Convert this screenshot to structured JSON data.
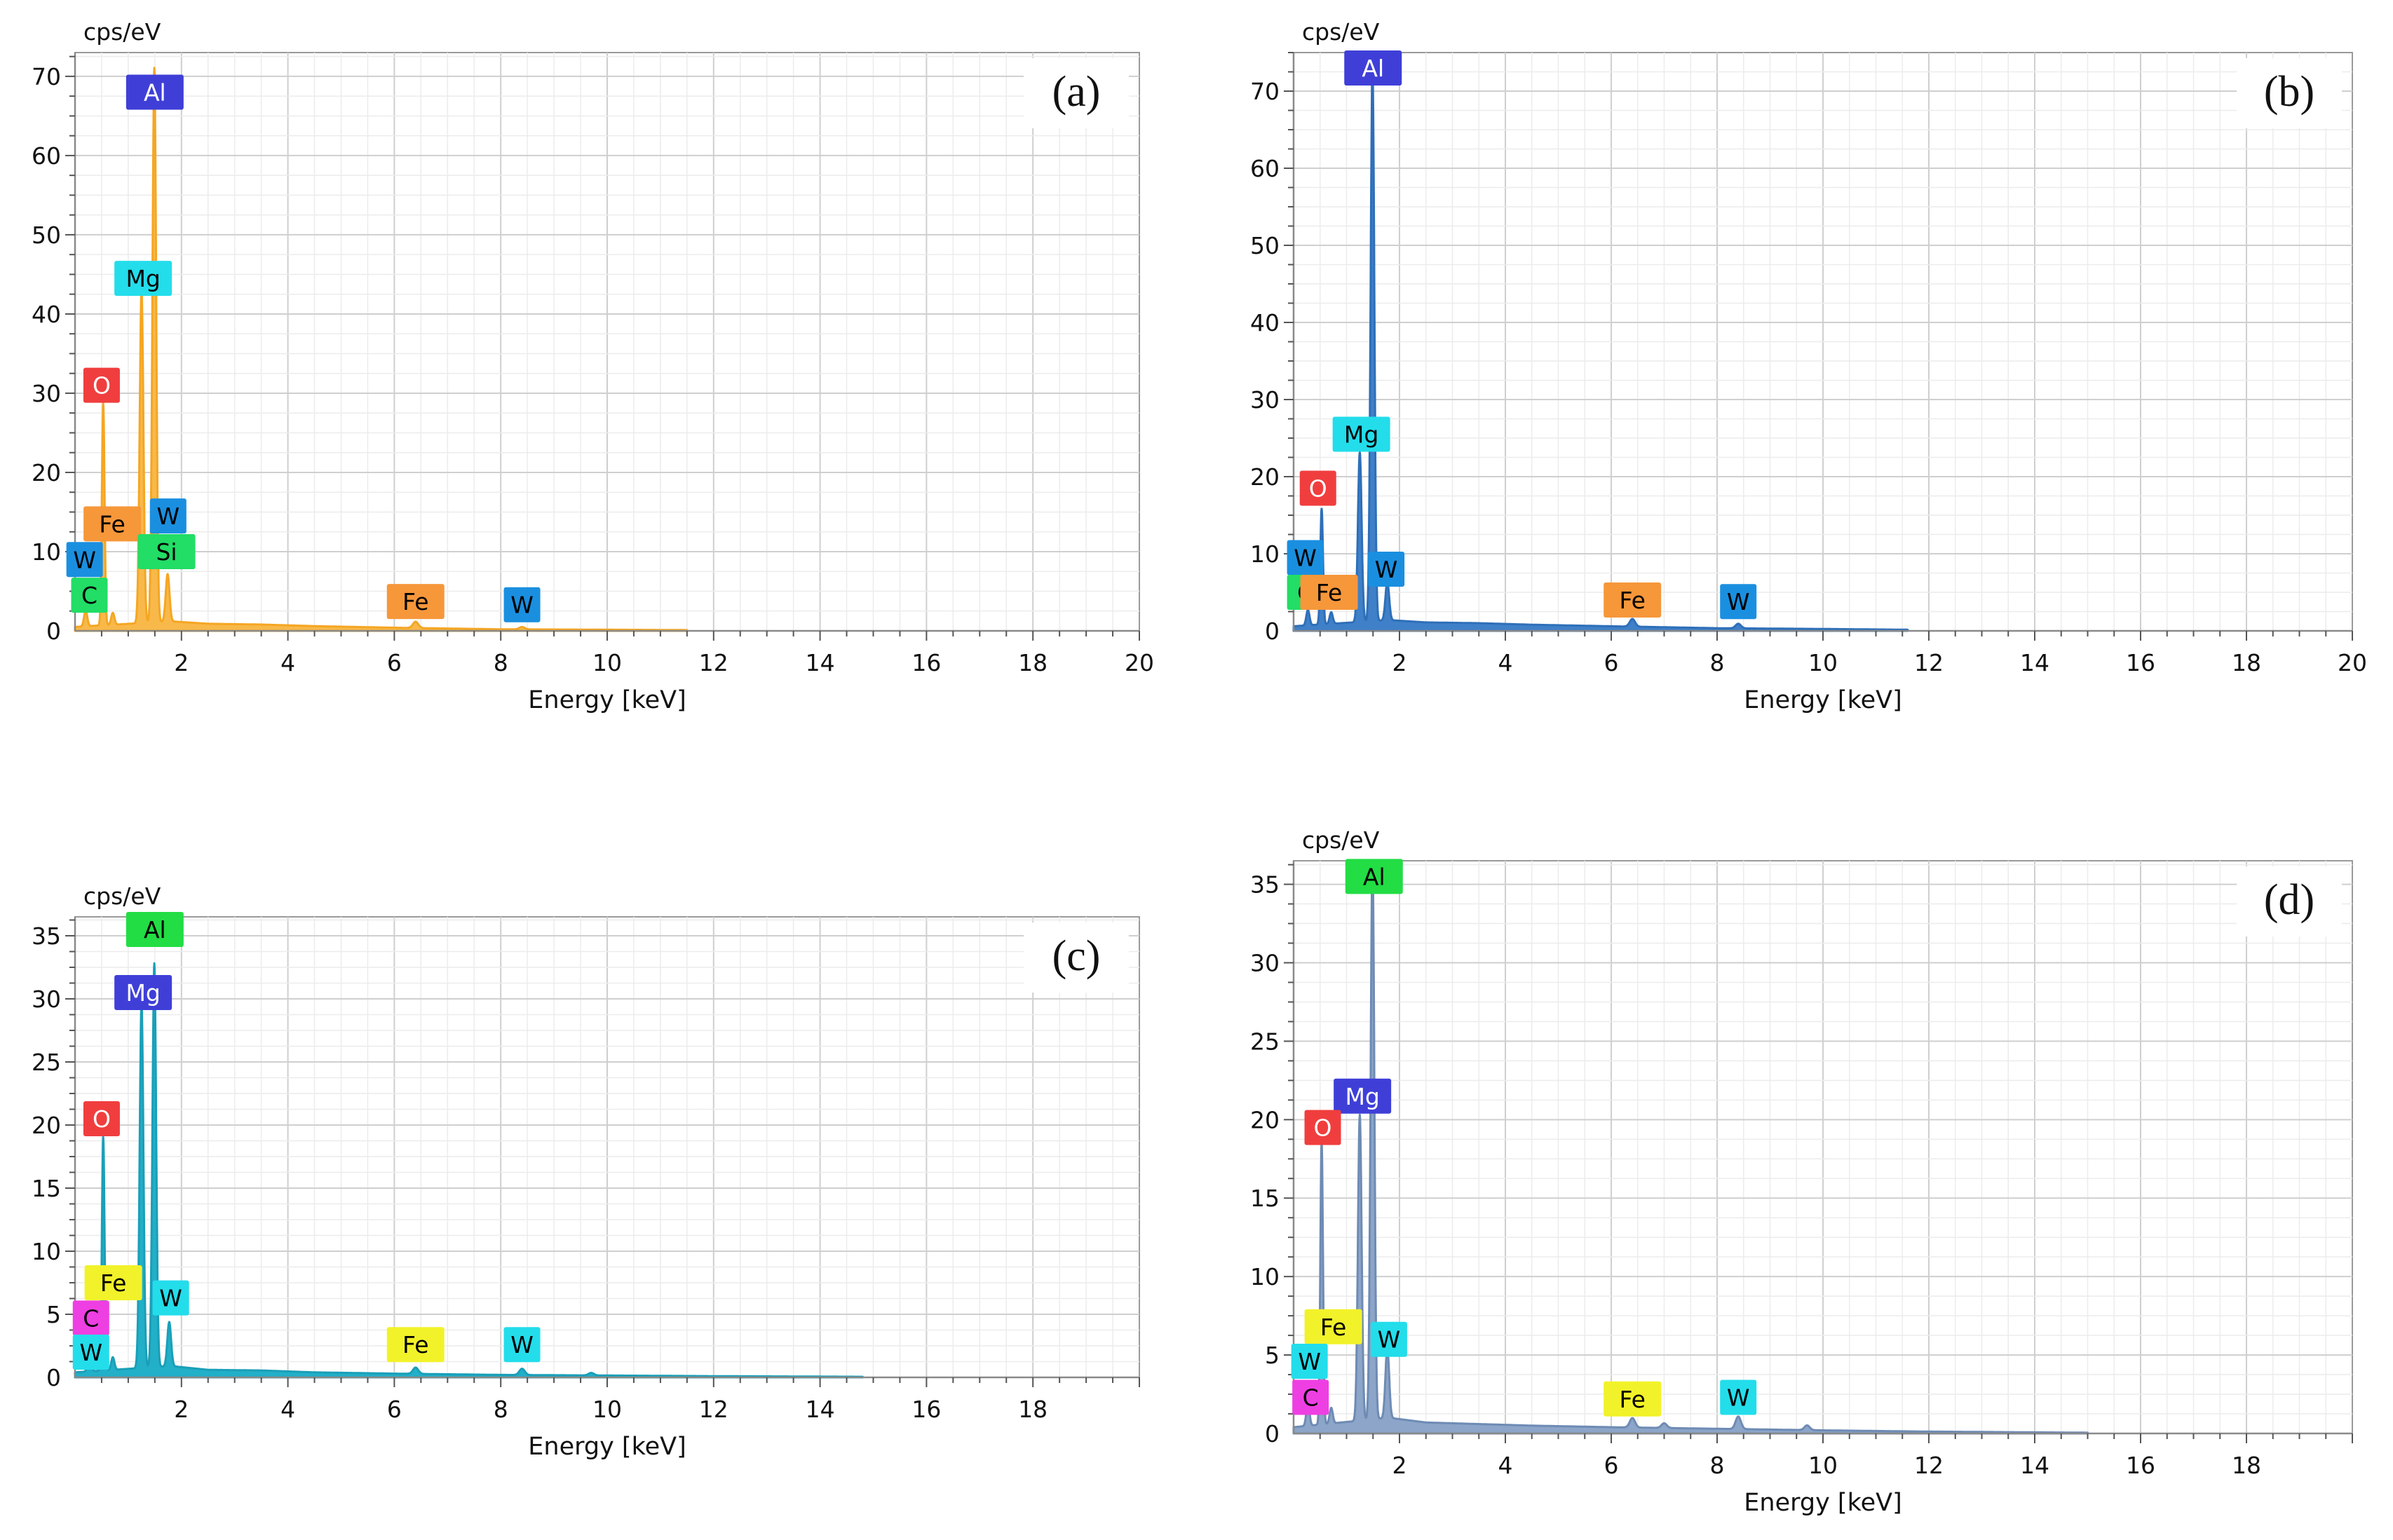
{
  "figure": {
    "panels": [
      "a",
      "b",
      "c",
      "d"
    ]
  },
  "chart_data": [
    {
      "type": "line",
      "panel": "a",
      "panel_label": "(a)",
      "title": "",
      "xlabel": "Energy [keV]",
      "ylabel": "cps/eV",
      "xlim": [
        0,
        20
      ],
      "ylim": [
        0,
        73
      ],
      "xticks": [
        2,
        4,
        6,
        8,
        10,
        12,
        14,
        16,
        18,
        20
      ],
      "yticks": [
        0,
        10,
        20,
        30,
        40,
        50,
        60,
        70
      ],
      "grid": true,
      "series_color": "#F5A623",
      "fill_color": "#F8B94A",
      "spectrum_end": 11.5,
      "background": [
        [
          0,
          0.5
        ],
        [
          1.8,
          1.2
        ],
        [
          2.5,
          0.9
        ],
        [
          3.5,
          0.8
        ],
        [
          4.5,
          0.6
        ],
        [
          6,
          0.4
        ],
        [
          8,
          0.2
        ],
        [
          10,
          0.15
        ],
        [
          11.5,
          0.1
        ]
      ],
      "peaks": [
        {
          "e": 0.2,
          "h": 2,
          "w": 0.03
        },
        {
          "e": 0.53,
          "h": 28,
          "w": 0.025
        },
        {
          "e": 0.71,
          "h": 1.5,
          "w": 0.03
        },
        {
          "e": 1.25,
          "h": 42,
          "w": 0.035
        },
        {
          "e": 1.49,
          "h": 70,
          "w": 0.035
        },
        {
          "e": 1.74,
          "h": 6,
          "w": 0.035
        },
        {
          "e": 6.4,
          "h": 0.8,
          "w": 0.05
        },
        {
          "e": 8.4,
          "h": 0.3,
          "w": 0.05
        }
      ],
      "labels": [
        {
          "text": "Al",
          "e": 1.5,
          "y": 68,
          "bg": "#3F3FD8",
          "fg": "#ffffff"
        },
        {
          "text": "Mg",
          "e": 1.28,
          "y": 44.5,
          "bg": "#23DDEB",
          "fg": "#000000"
        },
        {
          "text": "O",
          "e": 0.5,
          "y": 31,
          "bg": "#F03E3E",
          "fg": "#ffffff"
        },
        {
          "text": "Fe",
          "e": 0.7,
          "y": 13.5,
          "bg": "#F6973A",
          "fg": "#000000"
        },
        {
          "text": "W",
          "e": 1.75,
          "y": 14.5,
          "bg": "#1A8FE0",
          "fg": "#000000"
        },
        {
          "text": "Si",
          "e": 1.72,
          "y": 10,
          "bg": "#22DD66",
          "fg": "#000000"
        },
        {
          "text": "W",
          "e": 0.18,
          "y": 9,
          "bg": "#1A8FE0",
          "fg": "#000000"
        },
        {
          "text": "C",
          "e": 0.27,
          "y": 4.5,
          "bg": "#22DD66",
          "fg": "#000000"
        },
        {
          "text": "Fe",
          "e": 6.4,
          "y": 3.7,
          "bg": "#F6973A",
          "fg": "#000000"
        },
        {
          "text": "W",
          "e": 8.4,
          "y": 3.3,
          "bg": "#1A8FE0",
          "fg": "#000000"
        }
      ]
    },
    {
      "type": "line",
      "panel": "b",
      "panel_label": "(b)",
      "title": "",
      "xlabel": "Energy [keV]",
      "ylabel": "cps/eV",
      "xlim": [
        0,
        20
      ],
      "ylim": [
        0,
        75
      ],
      "xticks": [
        2,
        4,
        6,
        8,
        10,
        12,
        14,
        16,
        18,
        20
      ],
      "yticks": [
        0,
        10,
        20,
        30,
        40,
        50,
        60,
        70
      ],
      "grid": true,
      "series_color": "#2E6FB8",
      "fill_color": "#3F80C8",
      "spectrum_end": 11.6,
      "background": [
        [
          0,
          0.6
        ],
        [
          1.8,
          1.4
        ],
        [
          2.5,
          1.1
        ],
        [
          3.5,
          1.0
        ],
        [
          4.5,
          0.8
        ],
        [
          6,
          0.6
        ],
        [
          8,
          0.35
        ],
        [
          10,
          0.25
        ],
        [
          11.6,
          0.15
        ]
      ],
      "peaks": [
        {
          "e": 0.27,
          "h": 2,
          "w": 0.03
        },
        {
          "e": 0.53,
          "h": 15,
          "w": 0.025
        },
        {
          "e": 0.71,
          "h": 1.5,
          "w": 0.03
        },
        {
          "e": 1.25,
          "h": 22,
          "w": 0.035
        },
        {
          "e": 1.49,
          "h": 72,
          "w": 0.035
        },
        {
          "e": 1.77,
          "h": 5,
          "w": 0.035
        },
        {
          "e": 6.4,
          "h": 1.0,
          "w": 0.05
        },
        {
          "e": 8.4,
          "h": 0.6,
          "w": 0.05
        }
      ],
      "labels": [
        {
          "text": "Al",
          "e": 1.5,
          "y": 73,
          "bg": "#3F3FD8",
          "fg": "#ffffff"
        },
        {
          "text": "Mg",
          "e": 1.28,
          "y": 25.5,
          "bg": "#23DDEB",
          "fg": "#000000"
        },
        {
          "text": "O",
          "e": 0.46,
          "y": 18.5,
          "bg": "#F03E3E",
          "fg": "#ffffff"
        },
        {
          "text": "W",
          "e": 0.22,
          "y": 9.5,
          "bg": "#1A8FE0",
          "fg": "#000000"
        },
        {
          "text": "C",
          "e": 0.22,
          "y": 5,
          "bg": "#22DD66",
          "fg": "#000000"
        },
        {
          "text": "Fe",
          "e": 0.67,
          "y": 5,
          "bg": "#F6973A",
          "fg": "#000000"
        },
        {
          "text": "W",
          "e": 1.75,
          "y": 8,
          "bg": "#1A8FE0",
          "fg": "#000000"
        },
        {
          "text": "Fe",
          "e": 6.4,
          "y": 4,
          "bg": "#F6973A",
          "fg": "#000000"
        },
        {
          "text": "W",
          "e": 8.4,
          "y": 3.8,
          "bg": "#1A8FE0",
          "fg": "#000000"
        }
      ]
    },
    {
      "type": "line",
      "panel": "c",
      "panel_label": "(c)",
      "title": "",
      "xlabel": "Energy [keV]",
      "ylabel": "cps/eV",
      "xlim": [
        0,
        20
      ],
      "ylim": [
        0,
        36.5
      ],
      "xticks": [
        2,
        4,
        6,
        8,
        10,
        12,
        14,
        16,
        18
      ],
      "yticks": [
        0,
        5,
        10,
        15,
        20,
        25,
        30,
        35
      ],
      "grid": true,
      "series_color": "#1A9FB8",
      "fill_color": "#22AFC8",
      "spectrum_end": 14.8,
      "background": [
        [
          0,
          0.4
        ],
        [
          1.8,
          0.9
        ],
        [
          2.5,
          0.6
        ],
        [
          3.5,
          0.55
        ],
        [
          4.5,
          0.4
        ],
        [
          6,
          0.3
        ],
        [
          8,
          0.2
        ],
        [
          10,
          0.15
        ],
        [
          12,
          0.1
        ],
        [
          14.8,
          0.05
        ]
      ],
      "peaks": [
        {
          "e": 0.27,
          "h": 1.8,
          "w": 0.03
        },
        {
          "e": 0.53,
          "h": 18.5,
          "w": 0.025
        },
        {
          "e": 0.71,
          "h": 1.0,
          "w": 0.03
        },
        {
          "e": 1.25,
          "h": 29,
          "w": 0.035
        },
        {
          "e": 1.49,
          "h": 32,
          "w": 0.035
        },
        {
          "e": 1.77,
          "h": 3.5,
          "w": 0.035
        },
        {
          "e": 6.4,
          "h": 0.5,
          "w": 0.05
        },
        {
          "e": 8.4,
          "h": 0.5,
          "w": 0.05
        },
        {
          "e": 9.7,
          "h": 0.2,
          "w": 0.05
        }
      ],
      "labels": [
        {
          "text": "Al",
          "e": 1.5,
          "y": 35.5,
          "bg": "#22DD44",
          "fg": "#000000"
        },
        {
          "text": "Mg",
          "e": 1.28,
          "y": 30.5,
          "bg": "#3F3FD8",
          "fg": "#ffffff"
        },
        {
          "text": "O",
          "e": 0.5,
          "y": 20.5,
          "bg": "#F03E3E",
          "fg": "#ffffff"
        },
        {
          "text": "Fe",
          "e": 0.72,
          "y": 7.5,
          "bg": "#F2F22A",
          "fg": "#000000"
        },
        {
          "text": "W",
          "e": 1.8,
          "y": 6.3,
          "bg": "#23DDEB",
          "fg": "#000000"
        },
        {
          "text": "C",
          "e": 0.3,
          "y": 4.7,
          "bg": "#EE3FE2",
          "fg": "#000000"
        },
        {
          "text": "W",
          "e": 0.3,
          "y": 2.0,
          "bg": "#23DDEB",
          "fg": "#000000"
        },
        {
          "text": "Fe",
          "e": 6.4,
          "y": 2.6,
          "bg": "#F2F22A",
          "fg": "#000000"
        },
        {
          "text": "W",
          "e": 8.4,
          "y": 2.6,
          "bg": "#23DDEB",
          "fg": "#000000"
        }
      ]
    },
    {
      "type": "line",
      "panel": "d",
      "panel_label": "(d)",
      "title": "",
      "xlabel": "Energy [keV]",
      "ylabel": "cps/eV",
      "xlim": [
        0,
        20
      ],
      "ylim": [
        0,
        36.5
      ],
      "xticks": [
        2,
        4,
        6,
        8,
        10,
        12,
        14,
        16,
        18
      ],
      "yticks": [
        0,
        5,
        10,
        15,
        20,
        25,
        30,
        35
      ],
      "grid": true,
      "series_color": "#6E8BB4",
      "fill_color": "#8CA5C8",
      "spectrum_end": 15,
      "background": [
        [
          0,
          0.4
        ],
        [
          1.8,
          1.0
        ],
        [
          2.5,
          0.7
        ],
        [
          3.5,
          0.6
        ],
        [
          4.5,
          0.5
        ],
        [
          6,
          0.4
        ],
        [
          8,
          0.3
        ],
        [
          10,
          0.2
        ],
        [
          12,
          0.12
        ],
        [
          15,
          0.05
        ]
      ],
      "peaks": [
        {
          "e": 0.27,
          "h": 1.5,
          "w": 0.03
        },
        {
          "e": 0.53,
          "h": 18,
          "w": 0.025
        },
        {
          "e": 0.71,
          "h": 1.0,
          "w": 0.03
        },
        {
          "e": 1.25,
          "h": 19.5,
          "w": 0.035
        },
        {
          "e": 1.49,
          "h": 36,
          "w": 0.035
        },
        {
          "e": 1.77,
          "h": 4.5,
          "w": 0.035
        },
        {
          "e": 6.4,
          "h": 0.6,
          "w": 0.05
        },
        {
          "e": 7.0,
          "h": 0.3,
          "w": 0.05
        },
        {
          "e": 8.4,
          "h": 0.8,
          "w": 0.05
        },
        {
          "e": 9.7,
          "h": 0.3,
          "w": 0.05
        }
      ],
      "labels": [
        {
          "text": "Al",
          "e": 1.52,
          "y": 35.5,
          "bg": "#22DD44",
          "fg": "#000000"
        },
        {
          "text": "Mg",
          "e": 1.3,
          "y": 21.5,
          "bg": "#3F3FD8",
          "fg": "#ffffff"
        },
        {
          "text": "O",
          "e": 0.55,
          "y": 19.5,
          "bg": "#F03E3E",
          "fg": "#ffffff"
        },
        {
          "text": "Fe",
          "e": 0.75,
          "y": 6.8,
          "bg": "#F2F22A",
          "fg": "#000000"
        },
        {
          "text": "W",
          "e": 1.8,
          "y": 6.0,
          "bg": "#23DDEB",
          "fg": "#000000"
        },
        {
          "text": "W",
          "e": 0.3,
          "y": 4.6,
          "bg": "#23DDEB",
          "fg": "#000000"
        },
        {
          "text": "C",
          "e": 0.32,
          "y": 2.3,
          "bg": "#EE3FE2",
          "fg": "#000000"
        },
        {
          "text": "Fe",
          "e": 6.4,
          "y": 2.2,
          "bg": "#F2F22A",
          "fg": "#000000"
        },
        {
          "text": "W",
          "e": 8.4,
          "y": 2.3,
          "bg": "#23DDEB",
          "fg": "#000000"
        }
      ]
    }
  ]
}
